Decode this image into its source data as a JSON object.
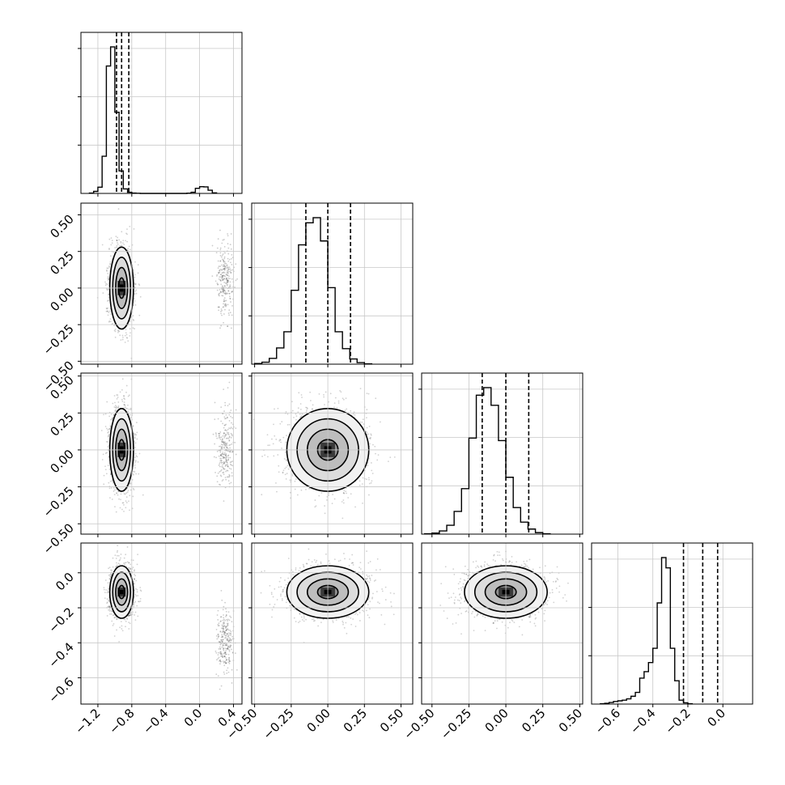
{
  "chart_data": {
    "type": "corner",
    "parameters": 4,
    "grid": true,
    "axes": [
      {
        "index": 0,
        "range": [
          -1.4,
          0.5
        ],
        "ticks": [
          -1.2,
          -0.8,
          -0.4,
          0.0,
          0.4
        ],
        "tick_labels": [
          "−1.2",
          "−0.8",
          "−0.4",
          "0.0",
          "0.4"
        ]
      },
      {
        "index": 1,
        "range": [
          -0.52,
          0.58
        ],
        "ticks": [
          -0.5,
          -0.25,
          0.0,
          0.25,
          0.5
        ],
        "tick_labels": [
          "−0.50",
          "−0.25",
          "0.00",
          "0.25",
          "0.50"
        ]
      },
      {
        "index": 2,
        "range": [
          -0.57,
          0.52
        ],
        "ticks": [
          -0.5,
          -0.25,
          0.0,
          0.25,
          0.5
        ],
        "tick_labels": [
          "−0.50",
          "−0.25",
          "0.00",
          "0.25",
          "0.50"
        ]
      },
      {
        "index": 3,
        "range": [
          -0.75,
          0.17
        ],
        "ticks": [
          -0.6,
          -0.4,
          -0.2,
          0.0
        ],
        "tick_labels": [
          "−0.6",
          "−0.4",
          "−0.2",
          "0.0"
        ]
      }
    ],
    "left_tick_labels": {
      "row1": [
        "−0.50",
        "−0.25",
        "0.00",
        "0.25",
        "0.50"
      ],
      "row2": [
        "−0.50",
        "−0.25",
        "0.00",
        "0.25",
        "0.50"
      ],
      "row3": [
        "−0.6",
        "−0.4",
        "−0.2",
        "0.0"
      ]
    },
    "marginals": [
      {
        "param": 0,
        "quantiles": [
          -0.98,
          -0.92,
          -0.835
        ],
        "bins": {
          "start": -1.3,
          "width": 0.05,
          "counts": [
            3,
            18,
            55,
            330,
            1130,
            1300,
            720,
            200,
            40,
            10,
            3,
            1,
            0,
            0,
            0,
            0,
            0,
            0,
            0,
            0,
            0,
            0,
            0,
            2,
            10,
            45,
            60,
            58,
            28,
            5
          ]
        }
      },
      {
        "param": 1,
        "quantiles": [
          -0.15,
          0.0,
          0.155
        ],
        "bins": {
          "start": -0.5,
          "width": 0.05,
          "counts": [
            5,
            15,
            45,
            125,
            250,
            570,
            920,
            1090,
            1130,
            950,
            590,
            250,
            120,
            40,
            12,
            3
          ]
        }
      },
      {
        "param": 2,
        "quantiles": [
          -0.16,
          0.0,
          0.155
        ],
        "bins": {
          "start": -0.55,
          "width": 0.05,
          "counts": [
            3,
            8,
            25,
            70,
            180,
            360,
            760,
            1100,
            1160,
            1020,
            740,
            450,
            210,
            95,
            40,
            12,
            3
          ]
        }
      },
      {
        "param": 3,
        "quantiles": [
          -0.225,
          -0.115,
          -0.03
        ],
        "bins": {
          "start": -0.7,
          "width": 0.025,
          "counts": [
            3,
            6,
            12,
            20,
            25,
            30,
            40,
            60,
            90,
            200,
            250,
            320,
            430,
            780,
            1130,
            1050,
            430,
            180,
            30,
            10,
            3
          ]
        }
      }
    ],
    "joint_panels": [
      {
        "row": 1,
        "col": 0,
        "center": [
          -0.92,
          0.0
        ],
        "spread": [
          0.07,
          0.14
        ],
        "secondary": {
          "center": [
            0.3,
            0.05
          ],
          "spread": [
            0.05,
            0.13
          ]
        }
      },
      {
        "row": 2,
        "col": 0,
        "center": [
          -0.92,
          0.0
        ],
        "spread": [
          0.07,
          0.14
        ],
        "secondary": {
          "center": [
            0.3,
            0.0
          ],
          "spread": [
            0.05,
            0.13
          ]
        }
      },
      {
        "row": 2,
        "col": 1,
        "center": [
          0.0,
          0.0
        ],
        "spread": [
          0.14,
          0.14
        ]
      },
      {
        "row": 3,
        "col": 0,
        "center": [
          -0.92,
          -0.11
        ],
        "spread": [
          0.07,
          0.075
        ],
        "secondary": {
          "center": [
            0.3,
            -0.38
          ],
          "spread": [
            0.05,
            0.09
          ]
        }
      },
      {
        "row": 3,
        "col": 1,
        "center": [
          0.0,
          -0.11
        ],
        "spread": [
          0.14,
          0.075
        ]
      },
      {
        "row": 3,
        "col": 2,
        "center": [
          0.0,
          -0.11
        ],
        "spread": [
          0.14,
          0.075
        ]
      }
    ]
  }
}
